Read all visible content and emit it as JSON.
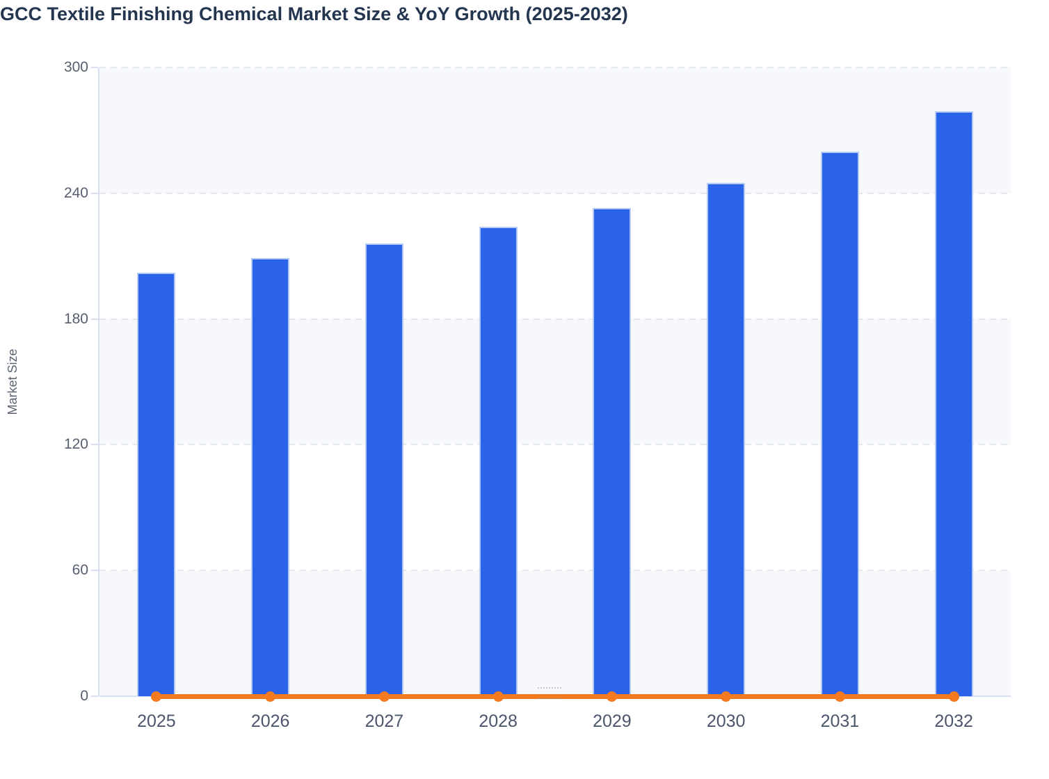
{
  "page": {
    "title": "GCC Textile Finishing Chemical Market Size & YoY Growth (2025-2032)"
  },
  "chart_data": {
    "type": "bar",
    "subtype": "combo bar + flat line with markers",
    "title": "GCC Textile Finishing Chemical Market Size & YoY Growth (2025-2032)",
    "categories": [
      "2025",
      "2026",
      "2027",
      "2028",
      "2029",
      "2030",
      "2031",
      "2032"
    ],
    "series": [
      {
        "name": "Market Size",
        "type": "bar",
        "values": [
          202,
          209,
          216,
          224,
          233,
          245,
          260,
          279
        ]
      },
      {
        "name": "YoY Growth",
        "type": "line",
        "values": [
          0,
          0,
          0,
          0,
          0,
          0,
          0,
          0
        ],
        "note": "orange line with round markers drawn flat at the 0 baseline; growth magnitudes not resolvable at the Market Size axis scale"
      }
    ],
    "xlabel": "",
    "ylabel": "Market Size",
    "ylim": [
      0,
      300
    ],
    "yticks": [
      0,
      60,
      120,
      180,
      240,
      300
    ],
    "grid": "dashed horizontal gridline at each y tick",
    "background_bands": "alternating stripes between ticks: 240-300 gray, 180-240 white, 120-180 gray, 60-120 white, 0-60 gray",
    "legend": "none"
  },
  "colors": {
    "bar_fill": "#2a63ea",
    "bar_border": "#b7c9f7",
    "line_orange": "#f47a1f",
    "title_text": "#24364f",
    "axis_line": "#d9dff2",
    "gridline": "#e4e7ec",
    "band_fill": "#f6f8fb",
    "y_tick_text": "#565f6f",
    "x_tick_text": "#4c566b",
    "axis_title_text": "#5a6372"
  }
}
